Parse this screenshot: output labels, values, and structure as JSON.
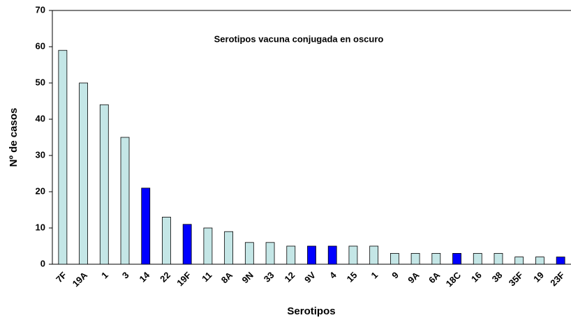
{
  "chart_data": {
    "type": "bar",
    "annotation": "Serotipos vacuna conjugada en oscuro",
    "x_label": "Serotipos",
    "y_label": "Nº de casos",
    "categories": [
      "7F",
      "19A",
      "1",
      "3",
      "14",
      "22",
      "19F",
      "11",
      "8A",
      "9N",
      "33",
      "12",
      "9V",
      "4",
      "15",
      "1",
      "9",
      "9A",
      "6A",
      "18C",
      "16",
      "38",
      "35F",
      "19",
      "23F"
    ],
    "values": [
      59,
      50,
      44,
      35,
      21,
      13,
      11,
      10,
      9,
      6,
      6,
      5,
      5,
      5,
      5,
      5,
      3,
      3,
      3,
      3,
      3,
      3,
      2,
      2,
      2
    ],
    "colors": [
      "#c4e6e6",
      "#c4e6e6",
      "#c4e6e6",
      "#c4e6e6",
      "#0000ff",
      "#c4e6e6",
      "#0000ff",
      "#c4e6e6",
      "#c4e6e6",
      "#c4e6e6",
      "#c4e6e6",
      "#c4e6e6",
      "#0000ff",
      "#0000ff",
      "#c4e6e6",
      "#c4e6e6",
      "#c4e6e6",
      "#c4e6e6",
      "#c4e6e6",
      "#0000ff",
      "#c4e6e6",
      "#c4e6e6",
      "#c4e6e6",
      "#c4e6e6",
      "#0000ff"
    ],
    "ylim": [
      0,
      70
    ],
    "yticks": [
      0,
      10,
      20,
      30,
      40,
      50,
      60,
      70
    ]
  }
}
